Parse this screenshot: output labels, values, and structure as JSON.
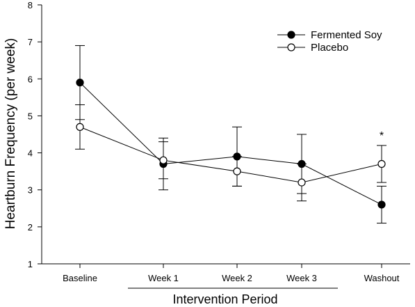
{
  "chart_data": {
    "type": "line",
    "title": "",
    "xlabel": "Intervention Period",
    "ylabel": "Heartburn Frequency (per week)",
    "categories": [
      "Baseline",
      "Week 1",
      "Week 2",
      "Week 3",
      "Washout"
    ],
    "ylim": [
      1,
      8
    ],
    "yticks": [
      "1",
      "2",
      "3",
      "4",
      "5",
      "6",
      "7",
      "8"
    ],
    "grid": false,
    "legend_position": "top-right",
    "series": [
      {
        "name": "Fermented Soy",
        "marker": "filled-circle",
        "color": "#000000",
        "values": [
          5.9,
          3.7,
          3.9,
          3.7,
          2.6
        ],
        "error": [
          1.0,
          0.7,
          0.8,
          0.8,
          0.5
        ]
      },
      {
        "name": "Placebo",
        "marker": "open-circle",
        "color": "#000000",
        "values": [
          4.7,
          3.8,
          3.5,
          3.2,
          3.7
        ],
        "error": [
          0.6,
          0.5,
          0.4,
          0.5,
          0.5
        ]
      }
    ],
    "annotations": [
      {
        "category": "Washout",
        "text": "*"
      }
    ],
    "bracket_label": "Intervention Period",
    "bracket_categories": [
      "Week 1",
      "Week 3"
    ]
  }
}
